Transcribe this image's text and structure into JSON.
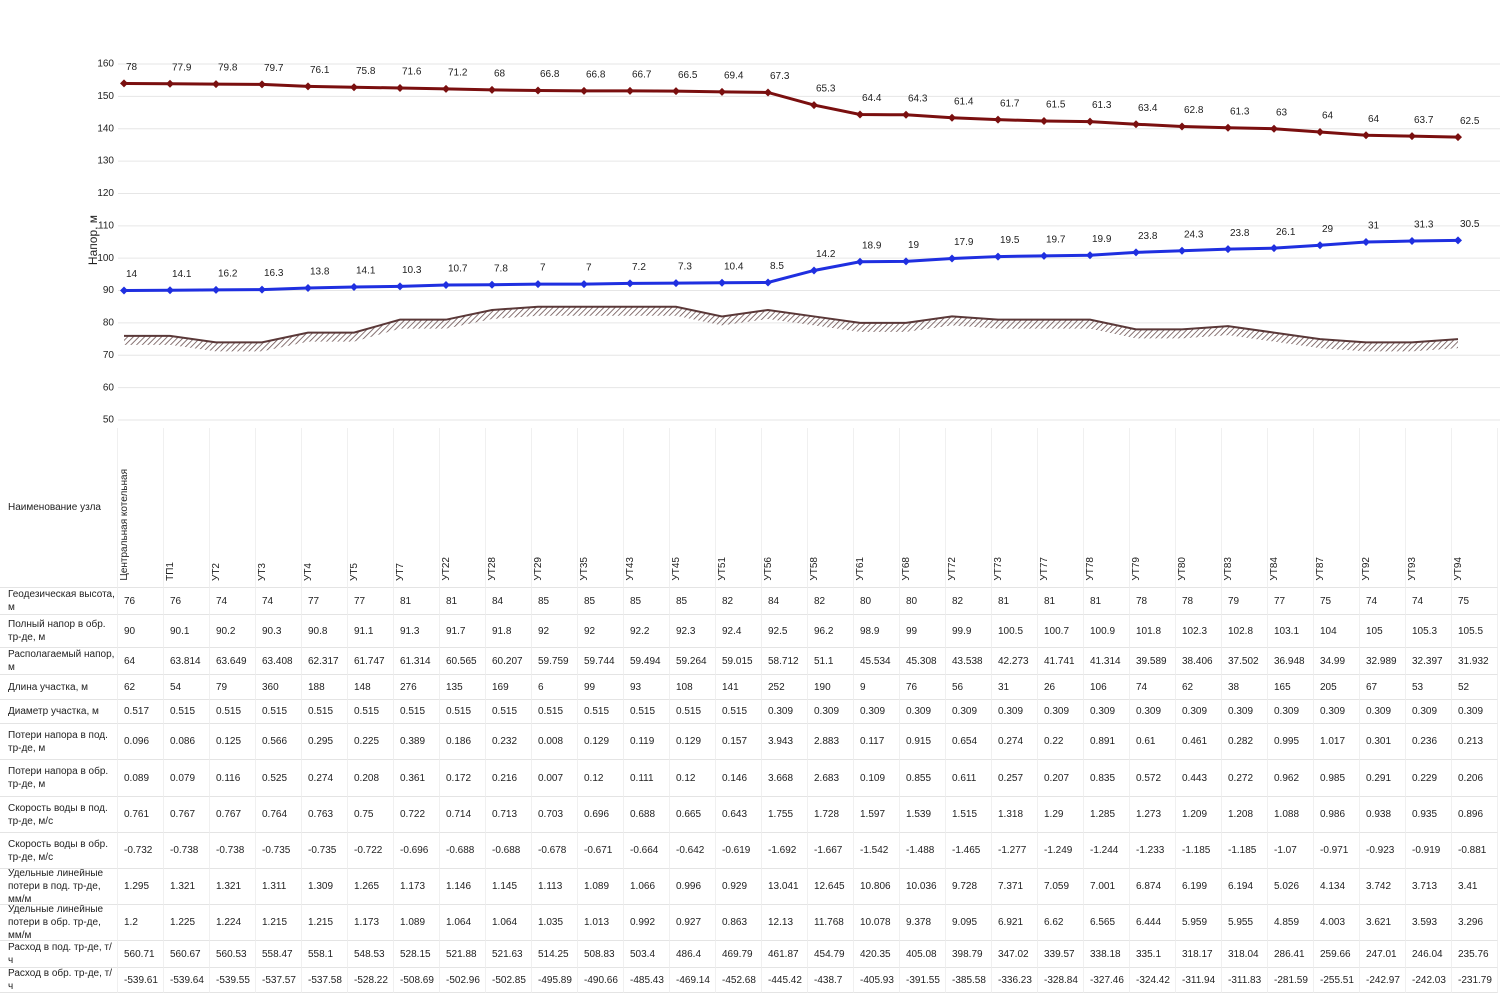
{
  "chart_data": {
    "type": "line",
    "y_label": "Напор, м",
    "ylim": [
      50,
      160
    ],
    "yticks": [
      50,
      60,
      70,
      80,
      90,
      100,
      110,
      120,
      130,
      140,
      150,
      160
    ],
    "grid": true,
    "categories": [
      "Центральная котельная",
      "ТП1",
      "УТ2",
      "УТ3",
      "УТ4",
      "УТ5",
      "УТ7",
      "УТ22",
      "УТ28",
      "УТ29",
      "УТ35",
      "УТ43",
      "УТ45",
      "УТ51",
      "УТ56",
      "УТ58",
      "УТ61",
      "УТ68",
      "УТ72",
      "УТ73",
      "УТ77",
      "УТ78",
      "УТ79",
      "УТ80",
      "УТ83",
      "УТ84",
      "УТ87",
      "УТ92",
      "УТ93",
      "УТ94"
    ],
    "series": [
      {
        "color": "#7a0f0f",
        "values": [
          154,
          153.9,
          153.8,
          153.7,
          153.1,
          152.8,
          152.6,
          152.3,
          152,
          151.8,
          151.7,
          151.7,
          151.6,
          151.4,
          151.2,
          147.3,
          144.4,
          144.3,
          143.4,
          142.8,
          142.4,
          142.2,
          141.4,
          140.7,
          140.3,
          140,
          139,
          138,
          137.7,
          137.4
        ],
        "labels": [
          78,
          77.9,
          79.8,
          79.7,
          76.1,
          75.8,
          71.6,
          71.2,
          68,
          66.8,
          66.8,
          66.7,
          66.5,
          69.4,
          67.3,
          65.3,
          64.4,
          64.3,
          61.4,
          61.7,
          61.5,
          61.3,
          63.4,
          62.8,
          61.3,
          63,
          64,
          64,
          63.7,
          62.5
        ]
      },
      {
        "color": "#1f2fe0",
        "values": [
          90,
          90.1,
          90.2,
          90.3,
          90.8,
          91.1,
          91.3,
          91.7,
          91.8,
          92,
          92,
          92.2,
          92.3,
          92.4,
          92.5,
          96.2,
          98.9,
          99,
          99.9,
          100.5,
          100.7,
          100.9,
          101.8,
          102.3,
          102.8,
          103.1,
          104,
          105,
          105.3,
          105.5
        ],
        "labels": [
          14,
          14.1,
          16.2,
          16.3,
          13.8,
          14.1,
          10.3,
          10.7,
          7.8,
          7,
          7,
          7.2,
          7.3,
          10.4,
          8.5,
          14.2,
          18.9,
          19,
          17.9,
          19.5,
          19.7,
          19.9,
          23.8,
          24.3,
          23.8,
          26.1,
          29,
          31,
          31.3,
          30.5
        ]
      },
      {
        "color": "#5a3838",
        "values": [
          76,
          76,
          74,
          74,
          77,
          77,
          81,
          81,
          84,
          85,
          85,
          85,
          85,
          82,
          84,
          82,
          80,
          80,
          82,
          81,
          81,
          81,
          78,
          78,
          79,
          77,
          75,
          74,
          74,
          75
        ]
      }
    ]
  },
  "table": {
    "header": "Наименование узла",
    "rows": [
      {
        "label": "Геодезическая высота, м",
        "values": [
          76,
          76,
          74,
          74,
          77,
          77,
          81,
          81,
          84,
          85,
          85,
          85,
          85,
          82,
          84,
          82,
          80,
          80,
          82,
          81,
          81,
          81,
          78,
          78,
          79,
          77,
          75,
          74,
          74,
          75
        ]
      },
      {
        "label": "Полный напор в обр. тр-де, м",
        "values": [
          90,
          90.1,
          90.2,
          90.3,
          90.8,
          91.1,
          91.3,
          91.7,
          91.8,
          92,
          92,
          92.2,
          92.3,
          92.4,
          92.5,
          96.2,
          98.9,
          99,
          99.9,
          100.5,
          100.7,
          100.9,
          101.8,
          102.3,
          102.8,
          103.1,
          104,
          105,
          105.3,
          105.5
        ]
      },
      {
        "label": "Располагаемый напор, м",
        "values": [
          64,
          63.814,
          63.649,
          63.408,
          62.317,
          61.747,
          61.314,
          60.565,
          60.207,
          59.759,
          59.744,
          59.494,
          59.264,
          59.015,
          58.712,
          51.1,
          45.534,
          45.308,
          43.538,
          42.273,
          41.741,
          41.314,
          39.589,
          38.406,
          37.502,
          36.948,
          34.99,
          32.989,
          32.397,
          31.932
        ]
      },
      {
        "label": "Длина участка, м",
        "values": [
          62,
          54,
          79,
          360,
          188,
          148,
          276,
          135,
          169,
          6,
          99,
          93,
          108,
          141,
          252,
          190,
          9,
          76,
          56,
          31,
          26,
          106,
          74,
          62,
          38,
          165,
          205,
          67,
          53,
          52
        ]
      },
      {
        "label": "Диаметр участка, м",
        "values": [
          0.517,
          0.515,
          0.515,
          0.515,
          0.515,
          0.515,
          0.515,
          0.515,
          0.515,
          0.515,
          0.515,
          0.515,
          0.515,
          0.515,
          0.309,
          0.309,
          0.309,
          0.309,
          0.309,
          0.309,
          0.309,
          0.309,
          0.309,
          0.309,
          0.309,
          0.309,
          0.309,
          0.309,
          0.309,
          0.309
        ]
      },
      {
        "label": "Потери напора в под. тр-де, м",
        "values": [
          0.096,
          0.086,
          0.125,
          0.566,
          0.295,
          0.225,
          0.389,
          0.186,
          0.232,
          0.008,
          0.129,
          0.119,
          0.129,
          0.157,
          3.943,
          2.883,
          0.117,
          0.915,
          0.654,
          0.274,
          0.22,
          0.891,
          0.61,
          0.461,
          0.282,
          0.995,
          1.017,
          0.301,
          0.236,
          0.213
        ]
      },
      {
        "label": "Потери напора в обр. тр-де, м",
        "values": [
          0.089,
          0.079,
          0.116,
          0.525,
          0.274,
          0.208,
          0.361,
          0.172,
          0.216,
          0.007,
          0.12,
          0.111,
          0.12,
          0.146,
          3.668,
          2.683,
          0.109,
          0.855,
          0.611,
          0.257,
          0.207,
          0.835,
          0.572,
          0.443,
          0.272,
          0.962,
          0.985,
          0.291,
          0.229,
          0.206
        ]
      },
      {
        "label": "Скорость воды в под. тр-де, м/с",
        "values": [
          0.761,
          0.767,
          0.767,
          0.764,
          0.763,
          0.75,
          0.722,
          0.714,
          0.713,
          0.703,
          0.696,
          0.688,
          0.665,
          0.643,
          1.755,
          1.728,
          1.597,
          1.539,
          1.515,
          1.318,
          1.29,
          1.285,
          1.273,
          1.209,
          1.208,
          1.088,
          0.986,
          0.938,
          0.935,
          0.896
        ]
      },
      {
        "label": "Скорость воды в обр. тр-де, м/с",
        "values": [
          -0.732,
          -0.738,
          -0.738,
          -0.735,
          -0.735,
          -0.722,
          -0.696,
          -0.688,
          -0.688,
          -0.678,
          -0.671,
          -0.664,
          -0.642,
          -0.619,
          -1.692,
          -1.667,
          -1.542,
          -1.488,
          -1.465,
          -1.277,
          -1.249,
          -1.244,
          -1.233,
          -1.185,
          -1.185,
          -1.07,
          -0.971,
          -0.923,
          -0.919,
          -0.881
        ]
      },
      {
        "label": "Удельные линейные потери в под. тр-де, мм/м",
        "values": [
          1.295,
          1.321,
          1.321,
          1.311,
          1.309,
          1.265,
          1.173,
          1.146,
          1.145,
          1.113,
          1.089,
          1.066,
          0.996,
          0.929,
          13.041,
          12.645,
          10.806,
          10.036,
          9.728,
          7.371,
          7.059,
          7.001,
          6.874,
          6.199,
          6.194,
          5.026,
          4.134,
          3.742,
          3.713,
          3.41
        ]
      },
      {
        "label": "Удельные линейные потери в обр. тр-де, мм/м",
        "values": [
          1.2,
          1.225,
          1.224,
          1.215,
          1.215,
          1.173,
          1.089,
          1.064,
          1.064,
          1.035,
          1.013,
          0.992,
          0.927,
          0.863,
          12.13,
          11.768,
          10.078,
          9.378,
          9.095,
          6.921,
          6.62,
          6.565,
          6.444,
          5.959,
          5.955,
          4.859,
          4.003,
          3.621,
          3.593,
          3.296
        ]
      },
      {
        "label": "Расход в под. тр-де, т/ч",
        "values": [
          560.71,
          560.67,
          560.53,
          558.47,
          558.1,
          548.53,
          528.15,
          521.88,
          521.63,
          514.25,
          508.83,
          503.4,
          486.4,
          469.79,
          461.87,
          454.79,
          420.35,
          405.08,
          398.79,
          347.02,
          339.57,
          338.18,
          335.1,
          318.17,
          318.04,
          286.41,
          259.66,
          247.01,
          246.04,
          235.76
        ]
      },
      {
        "label": "Расход в обр. тр-де, т/ч",
        "values": [
          -539.61,
          -539.64,
          -539.55,
          -537.57,
          -537.58,
          -528.22,
          -508.69,
          -502.96,
          -502.85,
          -495.89,
          -490.66,
          -485.43,
          -469.14,
          -452.68,
          -445.42,
          -438.7,
          -405.93,
          -391.55,
          -385.58,
          -336.23,
          -328.84,
          -327.46,
          -324.42,
          -311.94,
          -311.83,
          -281.59,
          -255.51,
          -242.97,
          -242.03,
          -231.79
        ]
      }
    ]
  }
}
